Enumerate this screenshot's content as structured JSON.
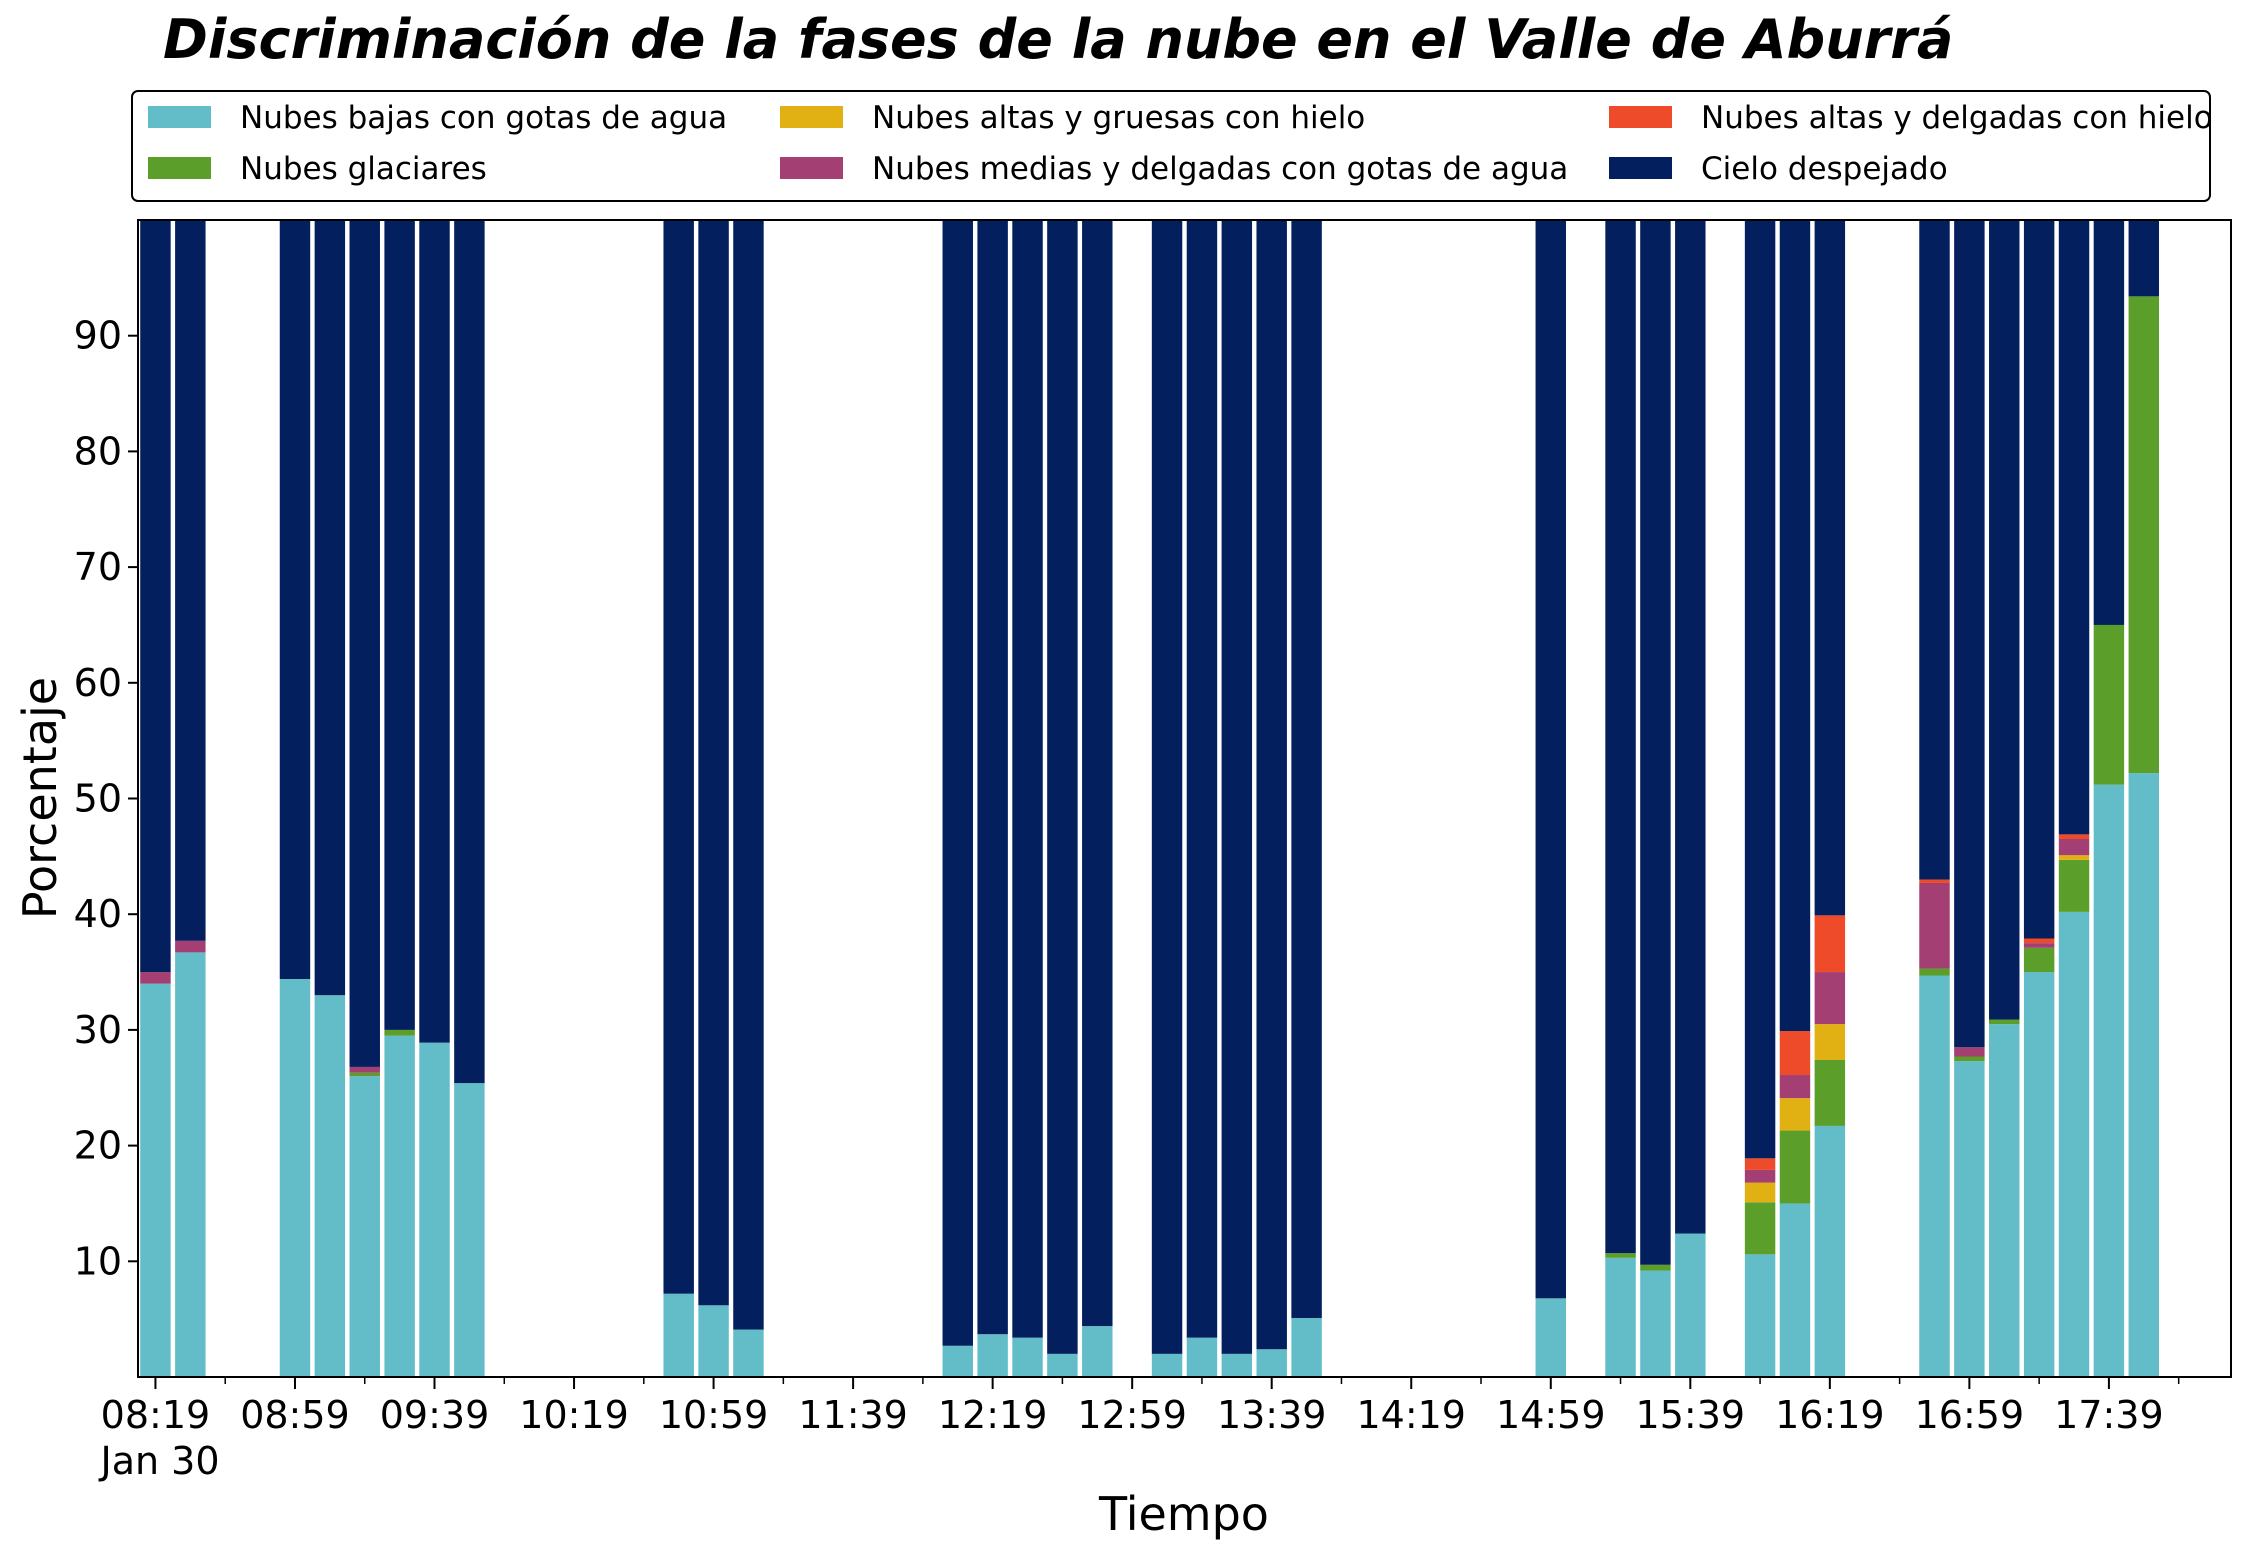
{
  "chart_data": {
    "type": "bar",
    "stacked": true,
    "title": "Discriminación de la fases de la nube en el Valle de Aburrá",
    "xlabel": "Tiempo",
    "ylabel": "Porcentaje",
    "ylim": [
      0,
      100
    ],
    "yticks": [
      10,
      20,
      30,
      40,
      50,
      60,
      70,
      80,
      90
    ],
    "xlim": [
      "08:14",
      "18:14"
    ],
    "xticks": [
      "08:19",
      "08:59",
      "09:39",
      "10:19",
      "10:59",
      "11:39",
      "12:19",
      "12:59",
      "13:39",
      "14:19",
      "14:59",
      "15:39",
      "16:19",
      "16:59",
      "17:39"
    ],
    "x_date_label": "Jan 30",
    "x_time_unit": "HH:MM",
    "bar_width_minutes": 9,
    "grid": false,
    "legend_position": "top",
    "series": [
      {
        "name": "Nubes bajas con gotas de agua",
        "color": "#63bdc9"
      },
      {
        "name": "Nubes glaciares",
        "color": "#5b9e2a"
      },
      {
        "name": "Nubes altas y gruesas con hielo",
        "color": "#e1b012"
      },
      {
        "name": "Nubes medias y delgadas con gotas de agua",
        "color": "#a43f74"
      },
      {
        "name": "Nubes altas y delgadas con hielo",
        "color": "#ee4b2b"
      },
      {
        "name": "Cielo despejado",
        "color": "#031f5e"
      }
    ],
    "bars": [
      {
        "x": "08:19",
        "values": [
          34.0,
          0.0,
          0.0,
          1.0,
          0.0,
          65.0
        ]
      },
      {
        "x": "08:29",
        "values": [
          36.7,
          0.0,
          0.0,
          1.0,
          0.0,
          62.3
        ]
      },
      {
        "x": "08:59",
        "values": [
          34.4,
          0.0,
          0.0,
          0.0,
          0.0,
          65.6
        ]
      },
      {
        "x": "09:09",
        "values": [
          33.0,
          0.0,
          0.0,
          0.0,
          0.0,
          67.0
        ]
      },
      {
        "x": "09:19",
        "values": [
          26.0,
          0.3,
          0.0,
          0.5,
          0.0,
          73.2
        ]
      },
      {
        "x": "09:29",
        "values": [
          29.5,
          0.5,
          0.0,
          0.0,
          0.0,
          70.0
        ]
      },
      {
        "x": "09:39",
        "values": [
          28.9,
          0.0,
          0.0,
          0.0,
          0.0,
          71.1
        ]
      },
      {
        "x": "09:49",
        "values": [
          25.4,
          0.0,
          0.0,
          0.0,
          0.0,
          74.6
        ]
      },
      {
        "x": "10:49",
        "values": [
          7.2,
          0.0,
          0.0,
          0.0,
          0.0,
          92.8
        ]
      },
      {
        "x": "10:59",
        "values": [
          6.2,
          0.0,
          0.0,
          0.0,
          0.0,
          93.8
        ]
      },
      {
        "x": "11:09",
        "values": [
          4.1,
          0.0,
          0.0,
          0.0,
          0.0,
          95.9
        ]
      },
      {
        "x": "12:09",
        "values": [
          2.7,
          0.0,
          0.0,
          0.0,
          0.0,
          97.3
        ]
      },
      {
        "x": "12:19",
        "values": [
          3.7,
          0.0,
          0.0,
          0.0,
          0.0,
          96.3
        ]
      },
      {
        "x": "12:29",
        "values": [
          3.4,
          0.0,
          0.0,
          0.0,
          0.0,
          96.6
        ]
      },
      {
        "x": "12:39",
        "values": [
          2.0,
          0.0,
          0.0,
          0.0,
          0.0,
          98.0
        ]
      },
      {
        "x": "12:49",
        "values": [
          4.4,
          0.0,
          0.0,
          0.0,
          0.0,
          95.6
        ]
      },
      {
        "x": "13:09",
        "values": [
          2.0,
          0.0,
          0.0,
          0.0,
          0.0,
          98.0
        ]
      },
      {
        "x": "13:19",
        "values": [
          3.4,
          0.0,
          0.0,
          0.0,
          0.0,
          96.6
        ]
      },
      {
        "x": "13:29",
        "values": [
          2.0,
          0.0,
          0.0,
          0.0,
          0.0,
          98.0
        ]
      },
      {
        "x": "13:39",
        "values": [
          2.4,
          0.0,
          0.0,
          0.0,
          0.0,
          97.6
        ]
      },
      {
        "x": "13:49",
        "values": [
          5.1,
          0.0,
          0.0,
          0.0,
          0.0,
          94.9
        ]
      },
      {
        "x": "14:59",
        "values": [
          6.8,
          0.0,
          0.0,
          0.0,
          0.0,
          93.2
        ]
      },
      {
        "x": "15:19",
        "values": [
          10.3,
          0.4,
          0.0,
          0.0,
          0.0,
          89.3
        ]
      },
      {
        "x": "15:29",
        "values": [
          9.2,
          0.5,
          0.0,
          0.0,
          0.0,
          90.3
        ]
      },
      {
        "x": "15:39",
        "values": [
          12.4,
          0.0,
          0.0,
          0.0,
          0.0,
          87.6
        ]
      },
      {
        "x": "15:59",
        "values": [
          10.6,
          4.5,
          1.7,
          1.1,
          1.0,
          81.1
        ]
      },
      {
        "x": "16:09",
        "values": [
          15.0,
          6.3,
          2.8,
          2.0,
          3.8,
          70.1
        ]
      },
      {
        "x": "16:19",
        "values": [
          21.7,
          5.7,
          3.1,
          4.5,
          4.9,
          60.1
        ]
      },
      {
        "x": "16:49",
        "values": [
          34.7,
          0.6,
          0.0,
          7.4,
          0.3,
          57.0
        ]
      },
      {
        "x": "16:59",
        "values": [
          27.3,
          0.4,
          0.0,
          0.8,
          0.0,
          71.5
        ]
      },
      {
        "x": "17:09",
        "values": [
          30.5,
          0.4,
          0.0,
          0.0,
          0.0,
          69.1
        ]
      },
      {
        "x": "17:19",
        "values": [
          35.0,
          2.1,
          0.0,
          0.4,
          0.4,
          62.1
        ]
      },
      {
        "x": "17:29",
        "values": [
          40.2,
          4.5,
          0.4,
          1.4,
          0.4,
          53.1
        ]
      },
      {
        "x": "17:39",
        "values": [
          51.2,
          13.8,
          0.0,
          0.0,
          0.0,
          35.0
        ]
      },
      {
        "x": "17:49",
        "values": [
          52.2,
          41.2,
          0.0,
          0.0,
          0.0,
          6.6
        ]
      }
    ]
  }
}
